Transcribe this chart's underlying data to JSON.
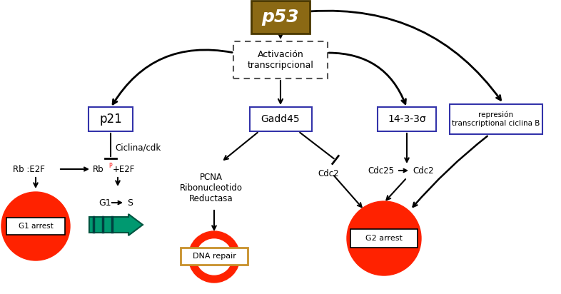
{
  "bg": "#ffffff",
  "blue": "#3333AA",
  "red": "#FF2200",
  "gold": "#8B6914",
  "green1": "#009970",
  "green2": "#004040",
  "dna_border": "#C8902A",
  "p53_text": "p53",
  "act_text": "Activación\ntranscripcional",
  "p21_text": "p21",
  "gadd45_text": "Gadd45",
  "sig14_text": "14-3-3σ",
  "rep_text": "represión\ntranscriptional ciclina B",
  "ciclina_text": "Ciclina/cdk",
  "rb_left_text": "Rb :E2F",
  "rb_right_text": "Rb",
  "rbp_text": "P",
  "e2f_text": "+E2F",
  "pcna_text": "PCNA\nRibonucleotido\nReductasa",
  "cdc2a_text": "Cdc2",
  "cdc25_text": "Cdc25",
  "cdc2b_text": "Cdc2",
  "g1_arrest_text": "G1 arrest",
  "g1s_g1": "G1",
  "g1s_s": "S",
  "dna_repair_text": "DNA repair",
  "g2_arrest_text": "G2 arrest",
  "figw": 7.86,
  "figh": 4.12,
  "dpi": 100
}
